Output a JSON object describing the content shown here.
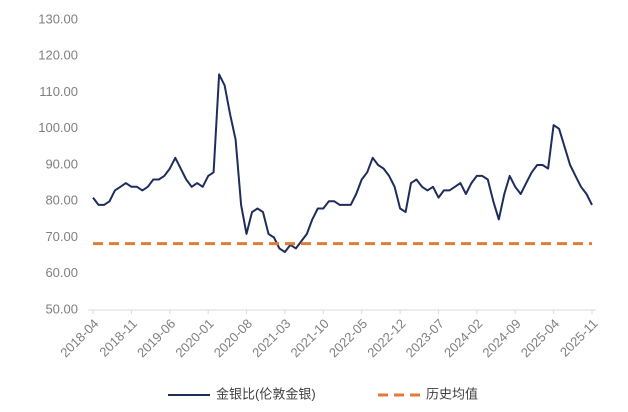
{
  "chart_data": {
    "type": "line",
    "categories": [
      "2018-04",
      null,
      null,
      null,
      null,
      null,
      null,
      "2018-11",
      null,
      null,
      null,
      null,
      null,
      null,
      "2019-06",
      null,
      null,
      null,
      null,
      null,
      null,
      "2020-01",
      null,
      null,
      null,
      null,
      null,
      null,
      "2020-08",
      null,
      null,
      null,
      null,
      null,
      null,
      "2021-03",
      null,
      null,
      null,
      null,
      null,
      null,
      "2021-10",
      null,
      null,
      null,
      null,
      null,
      null,
      "2022-05",
      null,
      null,
      null,
      null,
      null,
      null,
      "2022-12",
      null,
      null,
      null,
      null,
      null,
      null,
      "2023-07",
      null,
      null,
      null,
      null,
      null,
      null,
      "2024-02",
      null,
      null,
      null,
      null,
      null,
      null,
      "2024-09",
      null,
      null,
      null,
      null,
      null,
      null,
      "2025-04",
      null,
      null,
      null,
      null,
      null,
      null,
      "2025-11"
    ],
    "series": [
      {
        "name": "金银比(伦敦金银)",
        "color": "#1f2d5c",
        "values": [
          81,
          79,
          79,
          80,
          83,
          84,
          85,
          84,
          84,
          83,
          84,
          86,
          86,
          87,
          89,
          92,
          89,
          86,
          84,
          85,
          84,
          87,
          88,
          115,
          112,
          104,
          97,
          79,
          71,
          77,
          78,
          77,
          71,
          70,
          67,
          66,
          68,
          67,
          69,
          71,
          75,
          78,
          78,
          80,
          80,
          79,
          79,
          79,
          82,
          86,
          88,
          92,
          90,
          89,
          87,
          84,
          78,
          77,
          85,
          86,
          84,
          83,
          84,
          81,
          83,
          83,
          84,
          85,
          82,
          85,
          87,
          87,
          86,
          80,
          75,
          82,
          87,
          84,
          82,
          85,
          88,
          90,
          90,
          89,
          101,
          100,
          95,
          90,
          87,
          84,
          82,
          79
        ]
      },
      {
        "name": "历史均值",
        "color": "#e07b39",
        "value": 68.3,
        "dashed": true
      }
    ],
    "ylim": [
      50,
      130
    ],
    "yticks": [
      {
        "value": 50,
        "label": "50.00"
      },
      {
        "value": 60,
        "label": "60.00"
      },
      {
        "value": 70,
        "label": "70.00"
      },
      {
        "value": 80,
        "label": "80.00"
      },
      {
        "value": 90,
        "label": "90.00"
      },
      {
        "value": 100,
        "label": "100.00"
      },
      {
        "value": 110,
        "label": "110.00"
      },
      {
        "value": 120,
        "label": "120.00"
      },
      {
        "value": 130,
        "label": "130.00"
      }
    ],
    "legend": "bottom"
  }
}
